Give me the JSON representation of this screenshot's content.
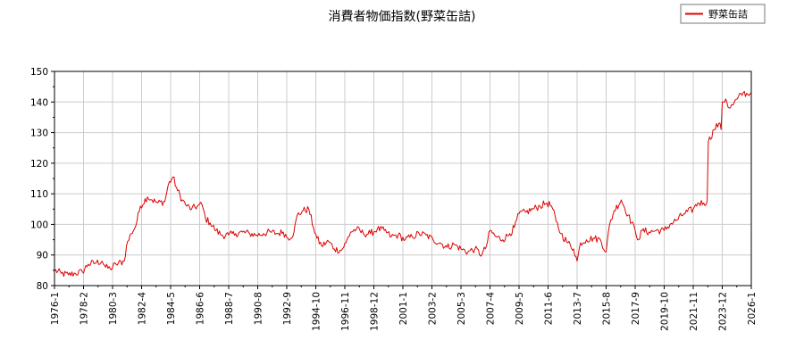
{
  "chart_data": {
    "type": "line",
    "title": "消費者物価指数(野菜缶詰)",
    "xlabel": "",
    "ylabel": "",
    "ylim": [
      80,
      150
    ],
    "yticks": [
      80,
      90,
      100,
      110,
      120,
      130,
      140,
      150
    ],
    "xlim": [
      "1976-1",
      "2026-1"
    ],
    "xticks": [
      "1976-1",
      "1978-2",
      "1980-3",
      "1982-4",
      "1984-5",
      "1986-6",
      "1988-7",
      "1990-8",
      "1992-9",
      "1994-10",
      "1996-11",
      "1998-12",
      "2001-1",
      "2003-2",
      "2005-3",
      "2007-4",
      "2009-5",
      "2011-6",
      "2013-7",
      "2015-8",
      "2017-9",
      "2019-10",
      "2021-11",
      "2023-12",
      "2026-1"
    ],
    "grid": true,
    "legend": "top-right",
    "series": [
      {
        "name": "野菜缶詰",
        "color": "#dd0000",
        "points": [
          [
            "1976-1",
            85
          ],
          [
            "1976-7",
            84
          ],
          [
            "1977-1",
            83.5
          ],
          [
            "1977-7",
            84
          ],
          [
            "1978-1",
            84.5
          ],
          [
            "1978-6",
            87
          ],
          [
            "1979-1",
            87.5
          ],
          [
            "1979-6",
            88
          ],
          [
            "1979-9",
            86
          ],
          [
            "1980-1",
            85.5
          ],
          [
            "1980-6",
            87
          ],
          [
            "1981-1",
            88
          ],
          [
            "1981-3",
            93
          ],
          [
            "1981-7",
            97
          ],
          [
            "1981-11",
            99.5
          ],
          [
            "1982-3",
            106
          ],
          [
            "1982-9",
            109
          ],
          [
            "1983-1",
            108
          ],
          [
            "1983-6",
            107
          ],
          [
            "1983-12",
            107.5
          ],
          [
            "1984-3",
            113
          ],
          [
            "1984-7",
            115.5
          ],
          [
            "1984-11",
            111
          ],
          [
            "1985-3",
            108
          ],
          [
            "1985-7",
            106
          ],
          [
            "1985-11",
            105
          ],
          [
            "1986-4",
            106
          ],
          [
            "1986-8",
            106.5
          ],
          [
            "1986-11",
            102
          ],
          [
            "1987-3",
            100.5
          ],
          [
            "1987-8",
            98
          ],
          [
            "1988-1",
            96.5
          ],
          [
            "1988-7",
            96.5
          ],
          [
            "1989-1",
            97
          ],
          [
            "1989-7",
            97.5
          ],
          [
            "1990-1",
            97
          ],
          [
            "1990-7",
            96.5
          ],
          [
            "1991-1",
            97
          ],
          [
            "1991-7",
            97.5
          ],
          [
            "1992-1",
            97
          ],
          [
            "1992-6",
            97.5
          ],
          [
            "1992-10",
            95.5
          ],
          [
            "1993-3",
            97
          ],
          [
            "1993-6",
            103
          ],
          [
            "1993-11",
            104.5
          ],
          [
            "1994-4",
            105
          ],
          [
            "1994-8",
            99
          ],
          [
            "1994-11",
            95.5
          ],
          [
            "1995-3",
            93
          ],
          [
            "1995-9",
            94.5
          ],
          [
            "1996-2",
            92
          ],
          [
            "1996-8",
            91.5
          ],
          [
            "1996-12",
            94
          ],
          [
            "1997-4",
            97.5
          ],
          [
            "1997-9",
            98.5
          ],
          [
            "1998-3",
            97
          ],
          [
            "1998-9",
            97
          ],
          [
            "1999-3",
            98.5
          ],
          [
            "1999-9",
            98
          ],
          [
            "2000-3",
            96
          ],
          [
            "2000-9",
            96.5
          ],
          [
            "2001-3",
            95
          ],
          [
            "2001-9",
            96
          ],
          [
            "2002-3",
            97
          ],
          [
            "2002-9",
            96.5
          ],
          [
            "2003-3",
            95
          ],
          [
            "2003-9",
            94
          ],
          [
            "2004-3",
            92.5
          ],
          [
            "2004-9",
            93.5
          ],
          [
            "2005-3",
            92
          ],
          [
            "2005-9",
            91
          ],
          [
            "2006-3",
            92
          ],
          [
            "2006-9",
            90
          ],
          [
            "2007-1",
            93
          ],
          [
            "2007-4",
            98
          ],
          [
            "2007-9",
            96
          ],
          [
            "2008-3",
            95
          ],
          [
            "2008-9",
            97
          ],
          [
            "2009-1",
            99
          ],
          [
            "2009-5",
            103.5
          ],
          [
            "2009-11",
            104
          ],
          [
            "2010-5",
            105
          ],
          [
            "2010-11",
            106
          ],
          [
            "2011-5",
            107
          ],
          [
            "2011-9",
            106
          ],
          [
            "2012-1",
            101
          ],
          [
            "2012-5",
            97
          ],
          [
            "2012-11",
            94
          ],
          [
            "2013-4",
            92
          ],
          [
            "2013-7",
            88
          ],
          [
            "2013-10",
            94
          ],
          [
            "2014-3",
            95
          ],
          [
            "2014-9",
            95.5
          ],
          [
            "2015-3",
            95
          ],
          [
            "2015-8",
            91
          ],
          [
            "2015-11",
            100
          ],
          [
            "2016-3",
            104.5
          ],
          [
            "2016-9",
            108
          ],
          [
            "2017-3",
            103
          ],
          [
            "2017-9",
            98
          ],
          [
            "2017-12",
            95
          ],
          [
            "2018-3",
            98
          ],
          [
            "2018-9",
            97.5
          ],
          [
            "2019-3",
            98
          ],
          [
            "2019-10",
            98
          ],
          [
            "2020-3",
            100
          ],
          [
            "2020-9",
            101.5
          ],
          [
            "2021-3",
            103.5
          ],
          [
            "2021-11",
            105
          ],
          [
            "2022-3",
            107
          ],
          [
            "2022-8",
            107
          ],
          [
            "2022-11",
            107.5
          ],
          [
            "2022-12",
            127
          ],
          [
            "2023-5",
            131
          ],
          [
            "2023-9",
            133
          ],
          [
            "2023-11",
            131
          ],
          [
            "2023-12",
            140
          ],
          [
            "2024-3",
            141
          ],
          [
            "2024-6",
            138
          ],
          [
            "2024-9",
            139
          ],
          [
            "2025-1",
            141
          ],
          [
            "2025-6",
            143
          ],
          [
            "2025-10",
            142.5
          ],
          [
            "2026-1",
            143
          ]
        ]
      }
    ]
  }
}
